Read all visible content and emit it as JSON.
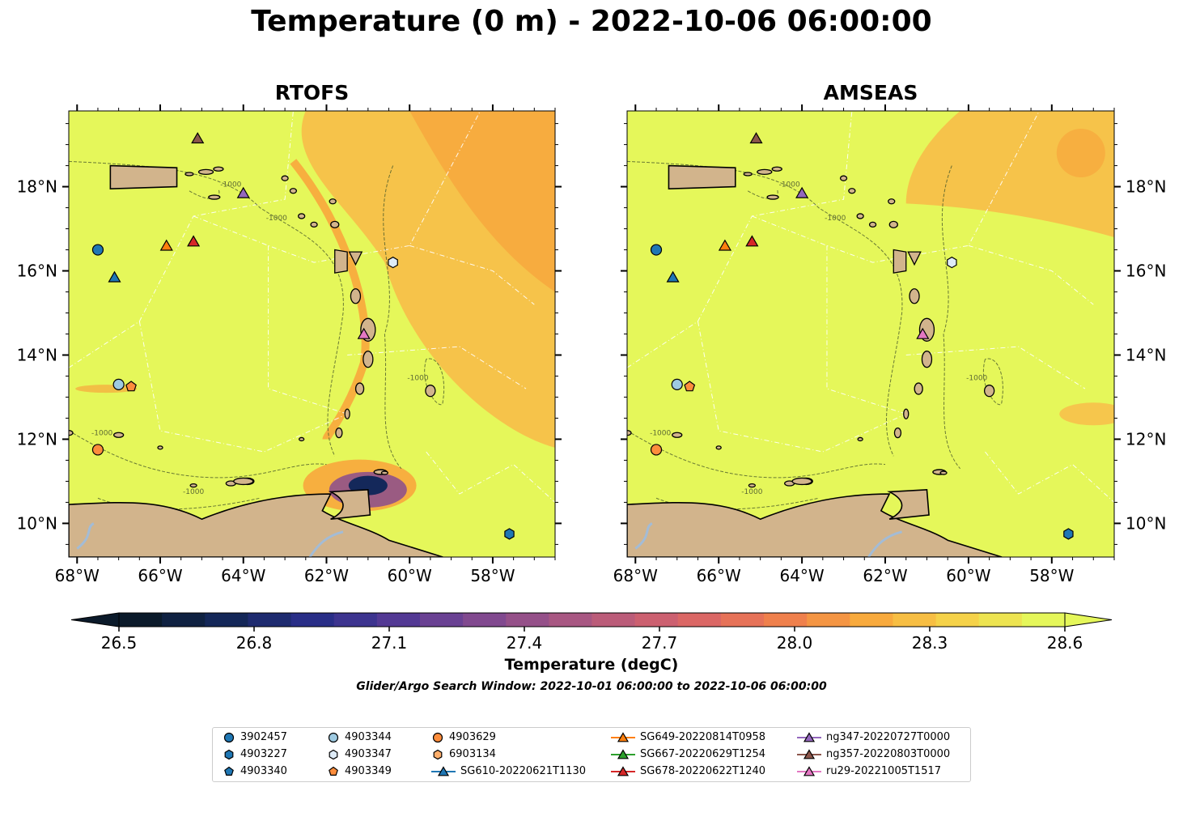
{
  "title": "Temperature (0 m) - 2022-10-06 06:00:00",
  "panels": [
    {
      "title": "RTOFS"
    },
    {
      "title": "AMSEAS"
    }
  ],
  "colors": {
    "land": "#d2b48c",
    "ocean_warm": "#e5f75a",
    "ocean_mid": "#f7c04a",
    "ocean_hot": "#f8a63c",
    "river": "#a3bcd6",
    "cbar_stops": [
      "#0b1a2a",
      "#14285a",
      "#2b2f8c",
      "#5a3b95",
      "#8a4c8e",
      "#b25a7e",
      "#d6636a",
      "#ee7a4f",
      "#f8a63c",
      "#f6d048",
      "#e5f75a"
    ]
  },
  "chart_data": {
    "type": "heatmap",
    "variable": "Temperature (degC)",
    "xlim": [
      -68.2,
      -56.5
    ],
    "ylim": [
      9.2,
      19.8
    ],
    "x_ticks": [
      "68°W",
      "66°W",
      "64°W",
      "62°W",
      "60°W",
      "58°W"
    ],
    "x_tick_values": [
      -68,
      -66,
      -64,
      -62,
      -60,
      -58
    ],
    "y_ticks": [
      "10°N",
      "12°N",
      "14°N",
      "16°N",
      "18°N"
    ],
    "y_tick_values": [
      10,
      12,
      14,
      16,
      18
    ],
    "colorbar": {
      "label": "Temperature (degC)",
      "range": [
        26.5,
        28.6
      ],
      "ticks": [
        "26.5",
        "26.8",
        "27.1",
        "27.4",
        "27.7",
        "28.0",
        "28.3",
        "28.6"
      ],
      "extend": "both"
    },
    "search_window": "Glider/Argo Search Window: 2022-10-01 06:00:00 to 2022-10-06 06:00:00",
    "contour_label": "-1000",
    "markers": [
      {
        "name": "3902457",
        "kind": "argo",
        "shape": "circle",
        "color": "#1f77b4",
        "lon": -67.5,
        "lat": 16.5
      },
      {
        "name": "4903227",
        "kind": "argo",
        "shape": "hexagon",
        "color": "#1f77b4",
        "lon": -57.6,
        "lat": 9.75
      },
      {
        "name": "4903340",
        "kind": "argo",
        "shape": "pentagon",
        "color": "#1f77b4",
        "lon": null,
        "lat": null
      },
      {
        "name": "4903344",
        "kind": "argo",
        "shape": "circle",
        "color": "#9ecae1",
        "lon": -67.0,
        "lat": 13.3
      },
      {
        "name": "4903347",
        "kind": "argo",
        "shape": "hexagon",
        "color": "#deebf7",
        "lon": -60.4,
        "lat": 16.2
      },
      {
        "name": "4903349",
        "kind": "argo",
        "shape": "pentagon",
        "color": "#fd8d3c",
        "lon": -66.7,
        "lat": 13.25
      },
      {
        "name": "4903629",
        "kind": "argo",
        "shape": "circle",
        "color": "#fd8d3c",
        "lon": -67.5,
        "lat": 11.75
      },
      {
        "name": "6903134",
        "kind": "argo",
        "shape": "hexagon",
        "color": "#fdae6b",
        "lon": null,
        "lat": null
      },
      {
        "name": "SG610-20220621T1130",
        "kind": "glider",
        "shape": "triangle",
        "color": "#1f77b4",
        "lon": -67.1,
        "lat": 15.85
      },
      {
        "name": "SG649-20220814T0958",
        "kind": "glider",
        "shape": "triangle",
        "color": "#ff7f0e",
        "lon": -65.85,
        "lat": 16.6
      },
      {
        "name": "SG667-20220629T1254",
        "kind": "glider",
        "shape": "triangle",
        "color": "#2ca02c",
        "lon": null,
        "lat": null
      },
      {
        "name": "SG678-20220622T1240",
        "kind": "glider",
        "shape": "triangle",
        "color": "#d62728",
        "lon": -65.2,
        "lat": 16.7
      },
      {
        "name": "ng347-20220727T0000",
        "kind": "glider",
        "shape": "triangle",
        "color": "#9467bd",
        "lon": -64.0,
        "lat": 17.85
      },
      {
        "name": "ng357-20220803T0000",
        "kind": "glider",
        "shape": "triangle",
        "color": "#8c564b",
        "lon": -65.1,
        "lat": 19.15
      },
      {
        "name": "ru29-20221005T1517",
        "kind": "glider",
        "shape": "triangle",
        "color": "#e377c2",
        "lon": -61.1,
        "lat": 14.5
      }
    ]
  }
}
